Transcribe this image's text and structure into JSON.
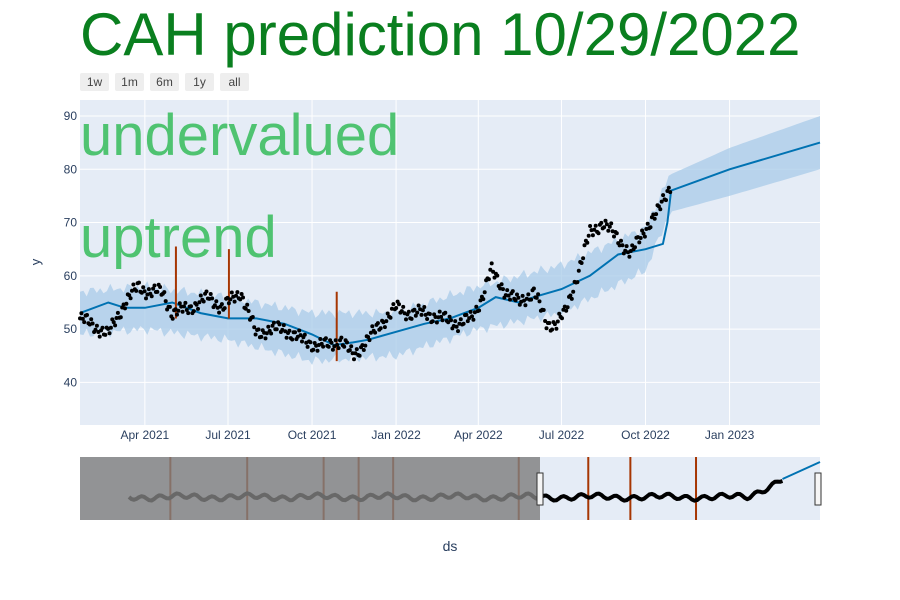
{
  "title": "CAH prediction 10/29/2022",
  "range_buttons": [
    "1w",
    "1m",
    "6m",
    "1y",
    "all"
  ],
  "annotations": [
    "undervalued",
    "uptrend"
  ],
  "colors": {
    "title": "#0a7f1f",
    "annotation": "#3fbf63",
    "plot_bg": "#e5ecf6",
    "forecast_line": "#0072b2",
    "uncertainty": "#a8cbe8",
    "actual_points": "#000000",
    "changepoints": "#a63603",
    "rangeslider_mask": "#7f7f7f"
  },
  "chart_data": {
    "type": "scatter",
    "xlabel": "ds",
    "ylabel": "y",
    "x_range": [
      "2021-01-20",
      "2023-04-10"
    ],
    "ylim": [
      32,
      93
    ],
    "y_ticks": [
      40,
      50,
      60,
      70,
      80,
      90
    ],
    "x_ticks": [
      {
        "date": "2021-04-01",
        "label": "Apr 2021"
      },
      {
        "date": "2021-07-01",
        "label": "Jul 2021"
      },
      {
        "date": "2021-10-01",
        "label": "Oct 2021"
      },
      {
        "date": "2022-01-01",
        "label": "Jan 2022"
      },
      {
        "date": "2022-04-01",
        "label": "Apr 2022"
      },
      {
        "date": "2022-07-01",
        "label": "Jul 2022"
      },
      {
        "date": "2022-10-01",
        "label": "Oct 2022"
      },
      {
        "date": "2023-01-01",
        "label": "Jan 2023"
      }
    ],
    "grid": true,
    "series": [
      {
        "kind": "actual",
        "x": [
          "2021-01-20",
          "2021-02-01",
          "2021-02-20",
          "2021-03-10",
          "2021-03-25",
          "2021-04-05",
          "2021-04-20",
          "2021-05-01",
          "2021-05-20",
          "2021-06-10",
          "2021-06-25",
          "2021-07-15",
          "2021-08-01",
          "2021-08-15",
          "2021-09-01",
          "2021-09-20",
          "2021-10-05",
          "2021-10-20",
          "2021-11-01",
          "2021-11-15",
          "2021-12-01",
          "2021-12-15",
          "2022-01-01",
          "2022-01-15",
          "2022-02-01",
          "2022-02-20",
          "2022-03-10",
          "2022-03-25",
          "2022-04-05",
          "2022-04-15",
          "2022-05-01",
          "2022-05-15",
          "2022-06-01",
          "2022-06-15",
          "2022-06-25",
          "2022-07-05",
          "2022-07-20",
          "2022-08-01",
          "2022-08-15",
          "2022-09-01",
          "2022-09-15",
          "2022-10-01",
          "2022-10-15",
          "2022-10-28"
        ],
        "y": [
          52,
          51,
          49,
          55,
          58,
          57,
          57,
          53,
          54,
          56,
          54,
          57,
          49,
          50,
          50,
          48,
          47,
          47,
          48,
          45,
          48,
          51,
          54,
          53,
          53,
          52,
          51,
          52,
          56,
          61,
          57,
          55,
          57,
          51,
          51,
          53,
          61,
          68,
          70,
          67,
          64,
          69,
          72,
          77
        ]
      },
      {
        "kind": "forecast",
        "x": [
          "2021-01-20",
          "2021-02-20",
          "2021-03-10",
          "2021-04-01",
          "2021-05-01",
          "2021-06-01",
          "2021-07-01",
          "2021-08-01",
          "2021-09-01",
          "2021-10-01",
          "2021-10-25",
          "2021-11-15",
          "2021-12-01",
          "2022-01-01",
          "2022-02-01",
          "2022-03-01",
          "2022-04-01",
          "2022-04-20",
          "2022-05-15",
          "2022-06-01",
          "2022-07-01",
          "2022-08-01",
          "2022-09-01",
          "2022-10-01",
          "2022-10-20",
          "2022-10-25",
          "2022-10-29",
          "2023-01-01",
          "2023-04-10"
        ],
        "y": [
          53,
          55,
          54,
          54,
          55,
          53,
          52,
          52,
          51,
          49,
          47,
          47.5,
          48,
          49.5,
          51,
          52,
          54,
          56,
          55,
          56,
          57.5,
          60,
          64,
          65,
          66,
          70,
          76,
          80,
          85
        ]
      },
      {
        "kind": "uncertainty_upper",
        "x": [
          "2021-01-20",
          "2021-04-01",
          "2021-07-01",
          "2021-10-01",
          "2022-01-01",
          "2022-04-01",
          "2022-07-01",
          "2022-10-01",
          "2022-10-28",
          "2023-01-01",
          "2023-04-10"
        ],
        "y": [
          57,
          58,
          56,
          53,
          53,
          58,
          62,
          69,
          79,
          84,
          90
        ]
      },
      {
        "kind": "uncertainty_lower",
        "x": [
          "2021-01-20",
          "2021-04-01",
          "2021-07-01",
          "2021-10-01",
          "2022-01-01",
          "2022-04-01",
          "2022-07-01",
          "2022-10-01",
          "2022-10-28",
          "2023-01-01",
          "2023-04-10"
        ],
        "y": [
          49,
          50,
          48,
          44,
          45,
          50,
          53,
          61,
          72,
          75,
          80
        ]
      }
    ],
    "changepoints": [
      {
        "date": "2021-05-05",
        "y_low": 52,
        "y_high": 65.5
      },
      {
        "date": "2021-07-02",
        "y_low": 52,
        "y_high": 65
      },
      {
        "date": "2021-10-28",
        "y_low": 44,
        "y_high": 57
      }
    ],
    "rangeslider": {
      "x_range": [
        "2014-06-01",
        "2023-04-10"
      ],
      "selected_range": [
        "2020-01-01",
        "2023-04-10"
      ],
      "changepoints": [
        "2015-07-01",
        "2016-06-01",
        "2017-05-01",
        "2017-10-01",
        "2018-03-01",
        "2019-09-01",
        "2020-07-01",
        "2021-01-01",
        "2021-10-15"
      ]
    }
  }
}
